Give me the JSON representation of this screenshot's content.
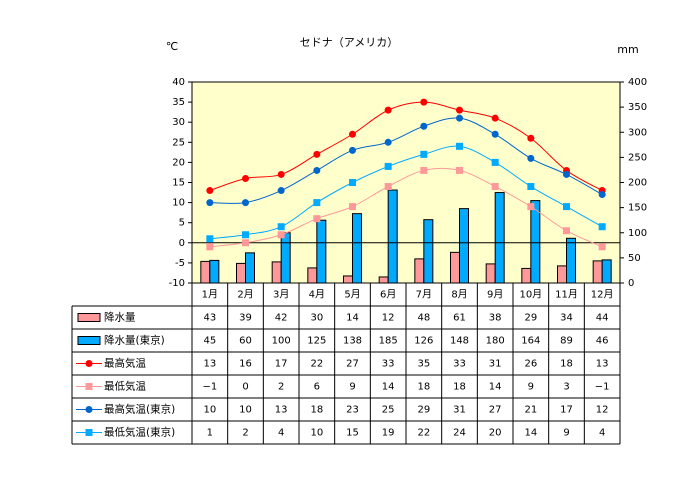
{
  "chart_data": {
    "type": "bar",
    "title": "セドナ（アメリカ）",
    "y_left_unit": "℃",
    "y_right_unit": "mm",
    "y_left_range": [
      -10,
      40
    ],
    "y_left_ticks": [
      "-10",
      "-5",
      "0",
      "5",
      "10",
      "15",
      "20",
      "25",
      "30",
      "35",
      "40"
    ],
    "y_right_range": [
      0,
      400
    ],
    "y_right_ticks": [
      "0",
      "50",
      "100",
      "150",
      "200",
      "250",
      "300",
      "350",
      "400"
    ],
    "categories": [
      "1月",
      "2月",
      "3月",
      "4月",
      "5月",
      "6月",
      "7月",
      "8月",
      "9月",
      "10月",
      "11月",
      "12月"
    ],
    "series": [
      {
        "name": "降水量",
        "kind": "bar",
        "axis": "right",
        "color": "#ff9999",
        "values": [
          43,
          39,
          42,
          30,
          14,
          12,
          48,
          61,
          38,
          29,
          34,
          44
        ],
        "labels": [
          "43",
          "39",
          "42",
          "30",
          "14",
          "12",
          "48",
          "61",
          "38",
          "29",
          "34",
          "44"
        ]
      },
      {
        "name": "降水量(東京)",
        "kind": "bar",
        "axis": "right",
        "color": "#00aaff",
        "values": [
          45,
          60,
          100,
          125,
          138,
          185,
          126,
          148,
          180,
          164,
          89,
          46
        ],
        "labels": [
          "45",
          "60",
          "100",
          "125",
          "138",
          "185",
          "126",
          "148",
          "180",
          "164",
          "89",
          "46"
        ]
      },
      {
        "name": "最高気温",
        "kind": "line",
        "marker": "circle",
        "axis": "left",
        "color": "#ff0000",
        "values": [
          13,
          16,
          17,
          22,
          27,
          33,
          35,
          33,
          31,
          26,
          18,
          13
        ],
        "labels": [
          "13",
          "16",
          "17",
          "22",
          "27",
          "33",
          "35",
          "33",
          "31",
          "26",
          "18",
          "13"
        ]
      },
      {
        "name": "最低気温",
        "kind": "line",
        "marker": "square",
        "axis": "left",
        "color": "#ff9999",
        "values": [
          -1,
          0,
          2,
          6,
          9,
          14,
          18,
          18,
          14,
          9,
          3,
          -1
        ],
        "labels": [
          "−1",
          "0",
          "2",
          "6",
          "9",
          "14",
          "18",
          "18",
          "14",
          "9",
          "3",
          "−1"
        ]
      },
      {
        "name": "最高気温(東京)",
        "kind": "line",
        "marker": "circle",
        "axis": "left",
        "color": "#0066cc",
        "values": [
          10,
          10,
          13,
          18,
          23,
          25,
          29,
          31,
          27,
          21,
          17,
          12
        ],
        "labels": [
          "10",
          "10",
          "13",
          "18",
          "23",
          "25",
          "29",
          "31",
          "27",
          "21",
          "17",
          "12"
        ]
      },
      {
        "name": "最低気温(東京)",
        "kind": "line",
        "marker": "square",
        "axis": "left",
        "color": "#00aaff",
        "values": [
          1,
          2,
          4,
          10,
          15,
          19,
          22,
          24,
          20,
          14,
          9,
          4
        ],
        "labels": [
          "1",
          "2",
          "4",
          "10",
          "15",
          "19",
          "22",
          "24",
          "20",
          "14",
          "9",
          "4"
        ]
      }
    ],
    "plot_background": "#ffffcc",
    "grid": false,
    "legend_placement": "data-table"
  }
}
